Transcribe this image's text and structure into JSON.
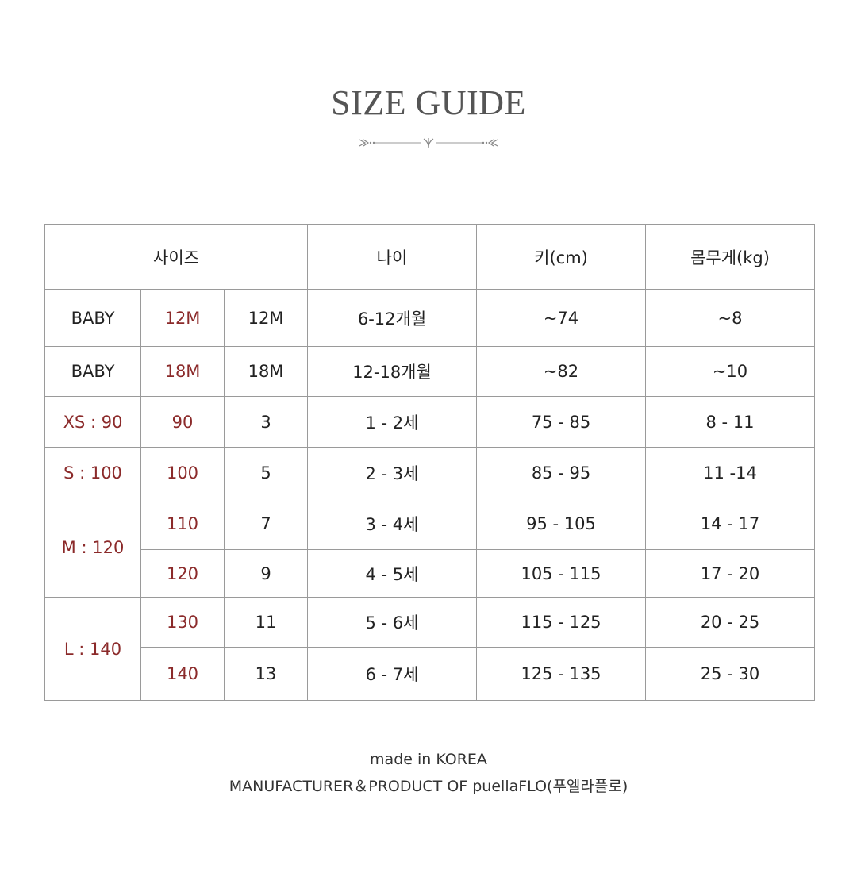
{
  "title": "SIZE GUIDE",
  "accent_color": "#8b2a2a",
  "table": {
    "headers": [
      "사이즈",
      "나이",
      "키(cm)",
      "몸무게(kg)"
    ],
    "rows": [
      {
        "group": "BABY",
        "size": "12M",
        "num": "12M",
        "age": "6-12개월",
        "height": "~74",
        "weight": "~8"
      },
      {
        "group": "BABY",
        "size": "18M",
        "num": "18M",
        "age": "12-18개월",
        "height": "~82",
        "weight": "~10"
      },
      {
        "group": "XS : 90",
        "size": "90",
        "num": "3",
        "age": "1 - 2세",
        "height": "75 - 85",
        "weight": "8 - 11"
      },
      {
        "group": "S : 100",
        "size": "100",
        "num": "5",
        "age": "2 - 3세",
        "height": "85 - 95",
        "weight": "11 -14"
      },
      {
        "group": "M : 120",
        "size": "110",
        "num": "7",
        "age": "3 - 4세",
        "height": "95 - 105",
        "weight": "14 - 17"
      },
      {
        "group": "",
        "size": "120",
        "num": "9",
        "age": "4 - 5세",
        "height": "105 - 115",
        "weight": "17 - 20"
      },
      {
        "group": "L : 140",
        "size": "130",
        "num": "11",
        "age": "5 - 6세",
        "height": "115 - 125",
        "weight": "20 - 25"
      },
      {
        "group": "",
        "size": "140",
        "num": "13",
        "age": "6 - 7세",
        "height": "125 - 135",
        "weight": "25 - 30"
      }
    ]
  },
  "footer": {
    "line1": "made in KOREA",
    "line2": "MANUFACTURER＆PRODUCT OF puellaFLO(푸엘라플로)"
  }
}
